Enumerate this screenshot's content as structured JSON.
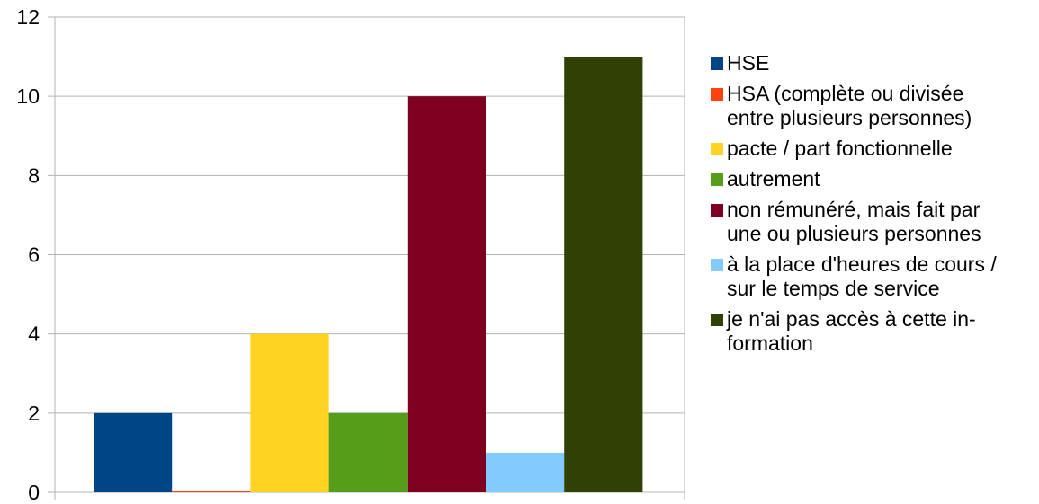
{
  "chart_data": {
    "type": "bar",
    "title": "",
    "xlabel": "",
    "ylabel": "",
    "ylim": [
      0,
      12
    ],
    "yticks": [
      "0",
      "2",
      "4",
      "6",
      "8",
      "10",
      "12"
    ],
    "grid": true,
    "legend_position": "right",
    "series": [
      {
        "name": "HSE",
        "value": 2,
        "color": "#004586"
      },
      {
        "name": "HSA (complète ou divisée\nentre plusieurs personnes)",
        "value": 0,
        "color": "#ff420e"
      },
      {
        "name": "pacte / part fonctionnelle",
        "value": 4,
        "color": "#ffd320"
      },
      {
        "name": "autrement",
        "value": 2,
        "color": "#579d1c"
      },
      {
        "name": "non rémunéré, mais fait par\nune ou plusieurs personnes",
        "value": 10,
        "color": "#7e0021"
      },
      {
        "name": "à la place d'heures de cours /\nsur le temps de service",
        "value": 1,
        "color": "#83caff"
      },
      {
        "name": "je n'ai pas accès à cette in-\nformation",
        "value": 11,
        "color": "#314004"
      }
    ]
  }
}
